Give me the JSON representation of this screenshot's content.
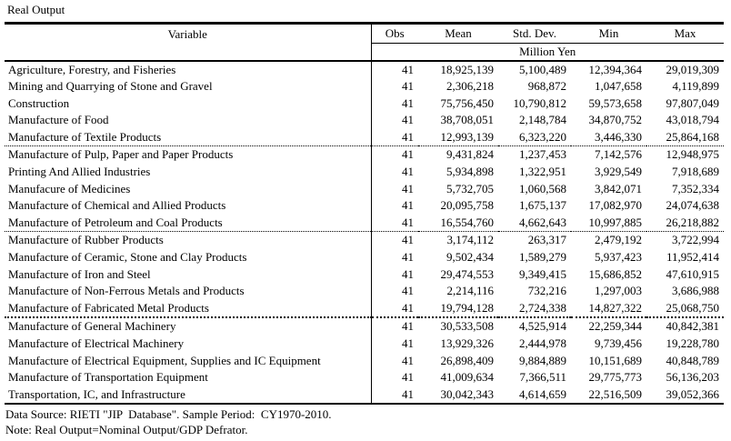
{
  "page": {
    "title": "Real Output"
  },
  "table": {
    "header": {
      "variable": "Variable",
      "obs": "Obs",
      "mean": "Mean",
      "std_dev": "Std. Dev.",
      "min": "Min",
      "max": "Max",
      "unit": "Million Yen"
    },
    "rows": [
      {
        "cells": [
          "Agriculture, Forestry, and Fisheries",
          "41",
          "18,925,139",
          "5,100,489",
          "12,394,364",
          "29,019,309"
        ],
        "sep": ""
      },
      {
        "cells": [
          "Mining and Quarrying of Stone and Gravel",
          "41",
          "2,306,218",
          "968,872",
          "1,047,658",
          "4,119,899"
        ],
        "sep": ""
      },
      {
        "cells": [
          "Construction",
          "41",
          "75,756,450",
          "10,790,812",
          "59,573,658",
          "97,807,049"
        ],
        "sep": ""
      },
      {
        "cells": [
          "Manufacture of Food",
          "41",
          "38,708,051",
          "2,148,784",
          "34,870,752",
          "43,018,794"
        ],
        "sep": ""
      },
      {
        "cells": [
          "Manufacture of Textile Products",
          "41",
          "12,993,139",
          "6,323,220",
          "3,446,330",
          "25,864,168"
        ],
        "sep": "dotted"
      },
      {
        "cells": [
          "Manufacture of Pulp, Paper and Paper Products",
          "41",
          "9,431,824",
          "1,237,453",
          "7,142,576",
          "12,948,975"
        ],
        "sep": ""
      },
      {
        "cells": [
          "Printing And Allied Industries",
          "41",
          "5,934,898",
          "1,322,951",
          "3,929,549",
          "7,918,689"
        ],
        "sep": ""
      },
      {
        "cells": [
          "Manufacure of Medicines",
          "41",
          "5,732,705",
          "1,060,568",
          "3,842,071",
          "7,352,334"
        ],
        "sep": ""
      },
      {
        "cells": [
          "Manufacture of Chemical and Allied Products",
          "41",
          "20,095,758",
          "1,675,137",
          "17,082,970",
          "24,074,638"
        ],
        "sep": ""
      },
      {
        "cells": [
          "Manufacture of Petroleum and Coal Products",
          "41",
          "16,554,760",
          "4,662,643",
          "10,997,885",
          "26,218,882"
        ],
        "sep": "dotted"
      },
      {
        "cells": [
          "Manufacture of Rubber Products",
          "41",
          "3,174,112",
          "263,317",
          "2,479,192",
          "3,722,994"
        ],
        "sep": ""
      },
      {
        "cells": [
          "Manufacture of Ceramic, Stone and Clay Products",
          "41",
          "9,502,434",
          "1,589,279",
          "5,937,423",
          "11,952,414"
        ],
        "sep": ""
      },
      {
        "cells": [
          "Manufacture of Iron and Steel",
          "41",
          "29,474,553",
          "9,349,415",
          "15,686,852",
          "47,610,915"
        ],
        "sep": ""
      },
      {
        "cells": [
          "Manufacture of Non-Ferrous Metals and Products",
          "41",
          "2,214,116",
          "732,216",
          "1,297,003",
          "3,686,988"
        ],
        "sep": ""
      },
      {
        "cells": [
          "Manufacture of Fabricated Metal Products",
          "41",
          "19,794,128",
          "2,724,338",
          "14,827,322",
          "25,068,750"
        ],
        "sep": "thick-dotted"
      },
      {
        "cells": [
          "Manufacture of General Machinery",
          "41",
          "30,533,508",
          "4,525,914",
          "22,259,344",
          "40,842,381"
        ],
        "sep": ""
      },
      {
        "cells": [
          "Manufacture of Electrical Machinery",
          "41",
          "13,929,326",
          "2,444,978",
          "9,739,456",
          "19,228,780"
        ],
        "sep": ""
      },
      {
        "cells": [
          "Manufacture of Electrical Equipment, Supplies and IC Equipment",
          "41",
          "26,898,409",
          "9,884,889",
          "10,151,689",
          "40,848,789"
        ],
        "sep": ""
      },
      {
        "cells": [
          "Manufacture of Transportation Equipment",
          "41",
          "41,009,634",
          "7,366,511",
          "29,775,773",
          "56,136,203"
        ],
        "sep": ""
      },
      {
        "cells": [
          "Transportation, IC, and Infrastructure",
          "41",
          "30,042,343",
          "4,614,659",
          "22,516,509",
          "39,052,366"
        ],
        "sep": ""
      }
    ]
  },
  "footer": {
    "source": "Data Source: RIETI \"JIP  Database\". Sample Period:  CY1970-2010.",
    "note": "Note: Real Output=Nominal Output/GDP Defrator."
  }
}
